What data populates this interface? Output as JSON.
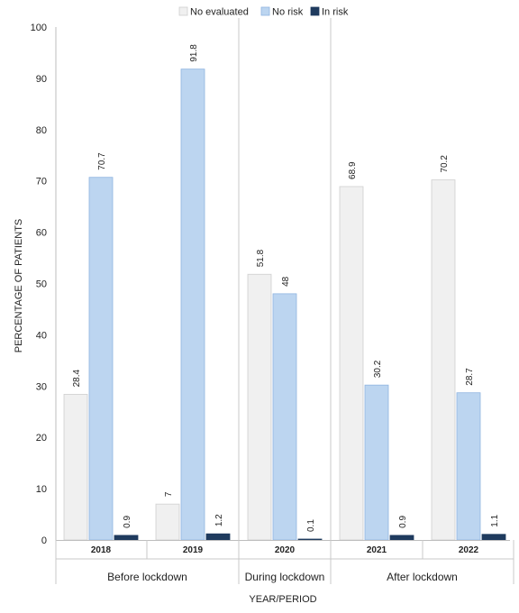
{
  "chart_data": {
    "type": "bar",
    "ylabel": "PERCENTAGE OF PATIENTS",
    "xlabel": "YEAR/PERIOD",
    "ylim": [
      0,
      100
    ],
    "yticks": [
      0,
      10,
      20,
      30,
      40,
      50,
      60,
      70,
      80,
      90,
      100
    ],
    "categories": [
      "2018",
      "2019",
      "2020",
      "2021",
      "2022"
    ],
    "groups": [
      {
        "label": "Before lockdown",
        "categories": [
          "2018",
          "2019"
        ]
      },
      {
        "label": "During lockdown",
        "categories": [
          "2020"
        ]
      },
      {
        "label": "After lockdown",
        "categories": [
          "2021",
          "2022"
        ]
      }
    ],
    "series": [
      {
        "name": "No evaluated",
        "color": "#f0f0f0",
        "stroke": "#cfcfcf",
        "values": [
          28.4,
          7,
          51.8,
          68.9,
          70.2
        ],
        "labels": [
          "28.4",
          "7",
          "51.8",
          "68.9",
          "70.2"
        ]
      },
      {
        "name": "No risk",
        "color": "#bcd5f0",
        "stroke": "#8fb4e0",
        "values": [
          70.7,
          91.8,
          48,
          30.2,
          28.7
        ],
        "labels": [
          "70.7",
          "91.8",
          "48",
          "30.2",
          "28.7"
        ]
      },
      {
        "name": "In risk",
        "color": "#1f3b5e",
        "stroke": "#1f3b5e",
        "values": [
          0.9,
          1.2,
          0.1,
          0.9,
          1.1
        ],
        "labels": [
          "0.9",
          "1.2",
          "0.1",
          "0.9",
          "1.1"
        ]
      }
    ],
    "legend_position": "top",
    "grid": false
  }
}
